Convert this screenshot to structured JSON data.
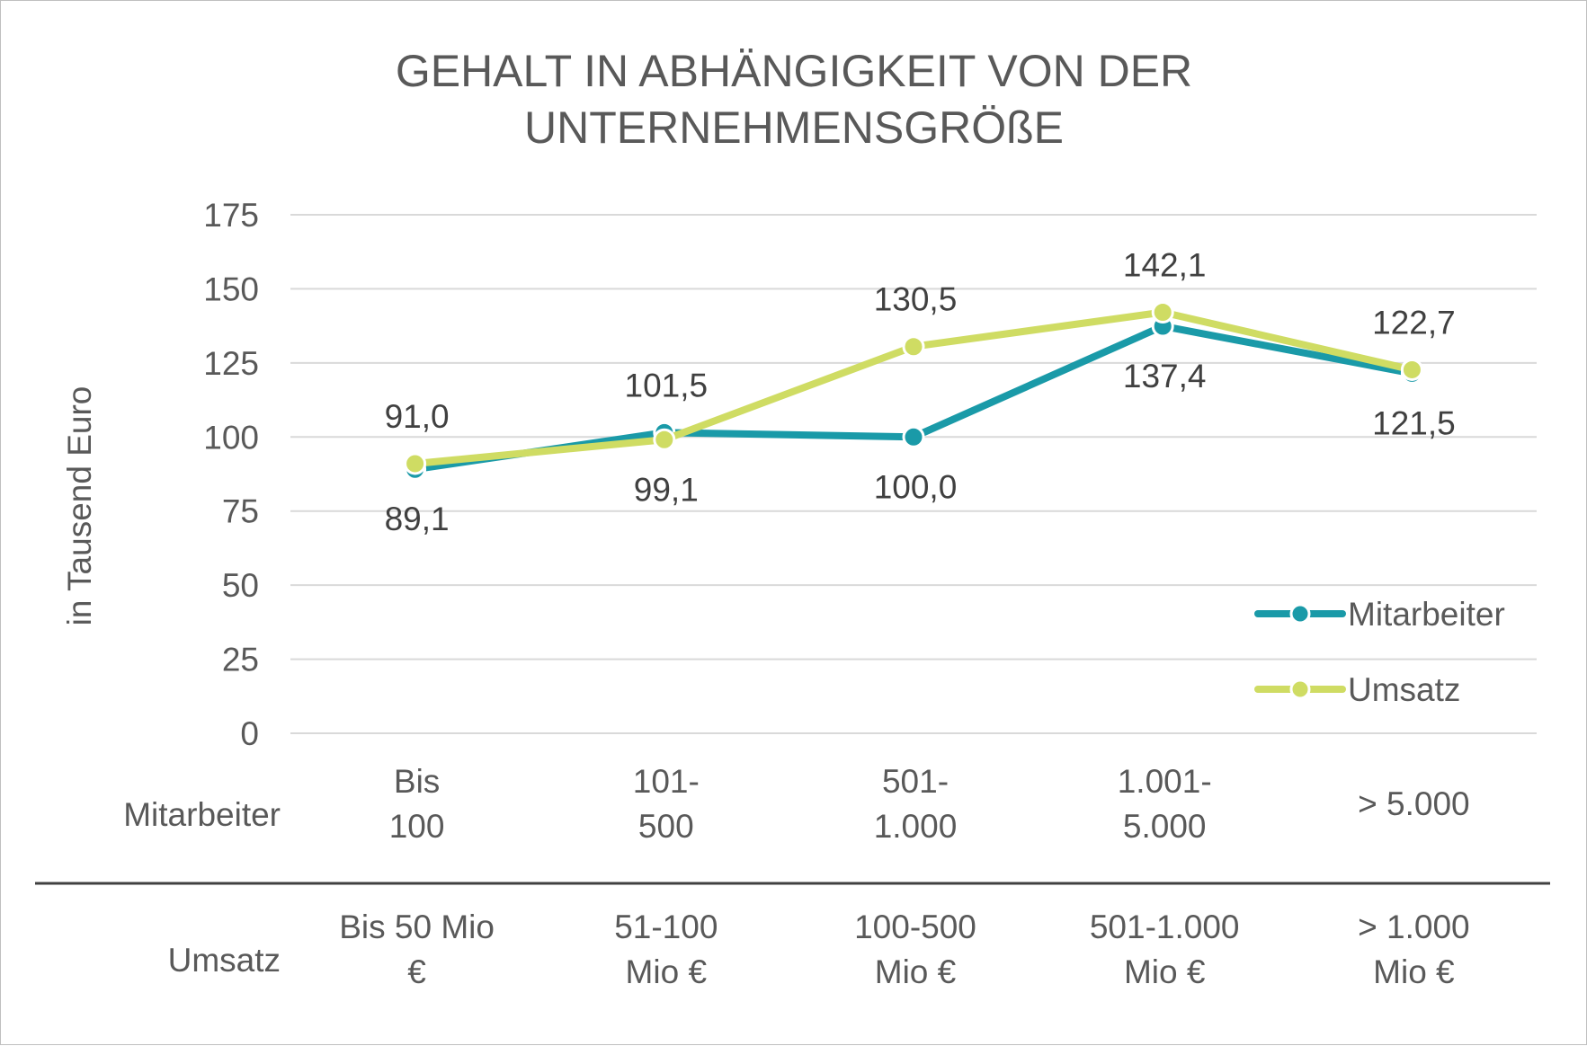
{
  "chart_data": {
    "type": "line",
    "title": [
      "GEHALT IN ABHÄNGIGKEIT VON DER",
      "UNTERNEHMENSGRÖßE"
    ],
    "ylabel": "in Tausend Euro",
    "ylim": [
      0,
      175
    ],
    "yticks": [
      0,
      25,
      50,
      75,
      100,
      125,
      150,
      175
    ],
    "grid": true,
    "legend_position": "right",
    "category_rows": [
      {
        "label": "Mitarbeiter",
        "categories": [
          [
            "Bis",
            "100"
          ],
          [
            "101-",
            "500"
          ],
          [
            "501-",
            "1.000"
          ],
          [
            "1.001-",
            "5.000"
          ],
          [
            "> 5.000"
          ]
        ]
      },
      {
        "label": "Umsatz",
        "categories": [
          [
            "Bis 50 Mio",
            "€"
          ],
          [
            "51-100",
            "Mio €"
          ],
          [
            "100-500",
            "Mio €"
          ],
          [
            "501-1.000",
            "Mio €"
          ],
          [
            "> 1.000",
            "Mio €"
          ]
        ]
      }
    ],
    "series": [
      {
        "name": "Mitarbeiter",
        "color": "#1a9aa8",
        "values": [
          89.1,
          101.5,
          100.0,
          137.4,
          121.5
        ],
        "labels": [
          "89,1",
          "101,5",
          "100,0",
          "137,4",
          "121,5"
        ]
      },
      {
        "name": "Umsatz",
        "color": "#cfdc63",
        "values": [
          91.0,
          99.1,
          130.5,
          142.1,
          122.7
        ],
        "labels": [
          "91,0",
          "99,1",
          "130,5",
          "142,1",
          "122,7"
        ]
      }
    ]
  }
}
